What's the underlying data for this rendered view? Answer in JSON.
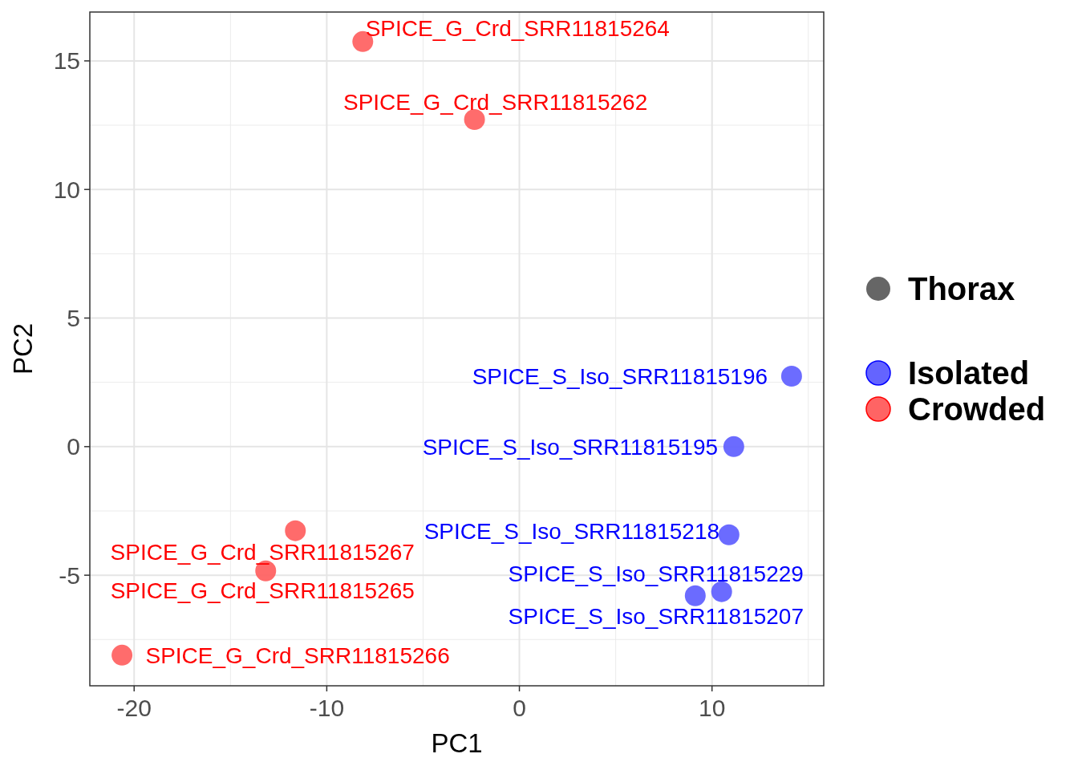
{
  "chart_data": {
    "type": "scatter",
    "xlabel": "PC1",
    "ylabel": "PC2",
    "legend_title": "Thorax",
    "legend": "right",
    "grid": true,
    "marker": "circle",
    "xlim": [
      -22.3,
      15.8
    ],
    "xticks": [
      -20,
      -10,
      0,
      10
    ],
    "ylim": [
      -9.3,
      16.9
    ],
    "yticks": [
      -5,
      0,
      5,
      10,
      15
    ],
    "series": [
      {
        "name": "Isolated",
        "color": "#6464ff",
        "x": [
          14.13,
          11.13,
          10.88,
          10.5,
          9.13
        ],
        "values": [
          2.74,
          0,
          -3.43,
          -5.64,
          -5.8
        ]
      },
      {
        "name": "Crowded",
        "color": "#ff6464",
        "x": [
          -8.13,
          -2.33,
          -11.63,
          -13.17,
          -20.63
        ],
        "values": [
          15.75,
          12.72,
          -3.27,
          -4.83,
          -8.11
        ]
      }
    ],
    "annotations": [
      {
        "text": "SPICE_G_Crd_SRR11815264",
        "x": -8.13,
        "y": 15.75
      },
      {
        "text": "SPICE_G_Crd_SRR11815262",
        "x": -2.33,
        "y": 12.72
      },
      {
        "text": "SPICE_S_Iso_SRR11815196",
        "x": 14.13,
        "y": 2.74
      },
      {
        "text": "SPICE_S_Iso_SRR11815195",
        "x": 11.13,
        "y": 0
      },
      {
        "text": "SPICE_S_Iso_SRR11815218",
        "x": 10.88,
        "y": -3.43
      },
      {
        "text": "SPICE_S_Iso_SRR11815229",
        "x": 10.5,
        "y": -5.64
      },
      {
        "text": "SPICE_S_Iso_SRR11815207",
        "x": 9.13,
        "y": -5.8
      },
      {
        "text": "SPICE_G_Crd_SRR11815267",
        "x": -11.63,
        "y": -3.27
      },
      {
        "text": "SPICE_G_Crd_SRR11815265",
        "x": -13.17,
        "y": -4.83
      },
      {
        "text": "SPICE_G_Crd_SRR11815266",
        "x": -20.63,
        "y": -8.11
      }
    ]
  }
}
